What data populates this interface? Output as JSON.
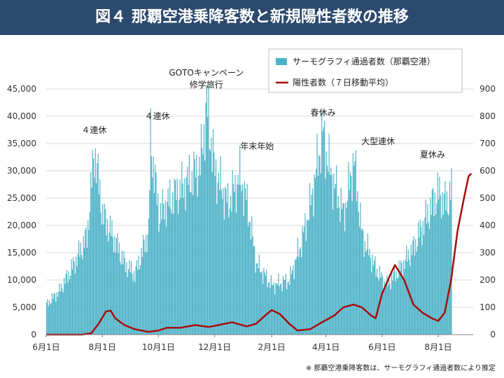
{
  "header": {
    "title": "図４ 那覇空港乗降客数と新規陽性者数の推移"
  },
  "footnote": "※ 那覇空港乗降客数は、サーモグラフィ通過者数により推定",
  "colors": {
    "title_bar": "#2c4a6e",
    "bars": "#4fb3c8",
    "line": "#a80d0d",
    "grid": "#d9d9d9"
  },
  "chart_data": {
    "type": "bar",
    "title": "",
    "xlabel": "",
    "ylabel_left": "",
    "ylabel_right": "",
    "grid": true,
    "legend_placement": "top-right",
    "left_axis": {
      "min": 0,
      "max": 45000,
      "ticks": [
        0,
        5000,
        10000,
        15000,
        20000,
        25000,
        30000,
        35000,
        40000,
        45000
      ],
      "tick_labels": [
        "0",
        "5,000",
        "10,000",
        "15,000",
        "20,000",
        "25,000",
        "30,000",
        "35,000",
        "40,000",
        "45,000"
      ]
    },
    "right_axis": {
      "min": 0,
      "max": 900,
      "ticks": [
        0,
        100,
        200,
        300,
        400,
        500,
        600,
        700,
        800,
        900
      ],
      "tick_labels": [
        "0",
        "100",
        "200",
        "300",
        "400",
        "500",
        "600",
        "700",
        "800",
        "900"
      ]
    },
    "x_axis": {
      "start": "2020-06-01",
      "end": "2021-08-15",
      "ticks": [
        "2020-06-01",
        "2020-08-01",
        "2020-10-01",
        "2020-12-01",
        "2021-02-01",
        "2021-04-01",
        "2021-06-01",
        "2021-08-01"
      ],
      "tick_labels": [
        "6月1日",
        "8月1日",
        "10月1日",
        "12月1日",
        "2月1日",
        "4月1日",
        "6月1日",
        "8月1日"
      ]
    },
    "series": [
      {
        "name": "サーモグラフィ通過者数（那覇空港）",
        "type": "bar",
        "axis": "left",
        "keypoints": [
          [
            "2020-06-01",
            5500
          ],
          [
            "2020-06-15",
            8000
          ],
          [
            "2020-07-01",
            13000
          ],
          [
            "2020-07-15",
            18000
          ],
          [
            "2020-07-23",
            34000
          ],
          [
            "2020-08-01",
            22000
          ],
          [
            "2020-08-15",
            17000
          ],
          [
            "2020-08-25",
            13000
          ],
          [
            "2020-09-05",
            11000
          ],
          [
            "2020-09-20",
            19000
          ],
          [
            "2020-09-22",
            36000
          ],
          [
            "2020-10-01",
            22000
          ],
          [
            "2020-10-15",
            25000
          ],
          [
            "2020-11-01",
            28000
          ],
          [
            "2020-11-15",
            31000
          ],
          [
            "2020-11-22",
            42000
          ],
          [
            "2020-12-01",
            30000
          ],
          [
            "2020-12-15",
            24000
          ],
          [
            "2020-12-28",
            29000
          ],
          [
            "2021-01-05",
            24000
          ],
          [
            "2021-01-15",
            13000
          ],
          [
            "2021-02-01",
            9000
          ],
          [
            "2021-02-20",
            10000
          ],
          [
            "2021-03-05",
            17000
          ],
          [
            "2021-03-15",
            24000
          ],
          [
            "2021-03-28",
            37000
          ],
          [
            "2021-04-05",
            30000
          ],
          [
            "2021-04-20",
            22000
          ],
          [
            "2021-05-01",
            32000
          ],
          [
            "2021-05-10",
            18000
          ],
          [
            "2021-05-25",
            12000
          ],
          [
            "2021-06-05",
            9000
          ],
          [
            "2021-06-20",
            12000
          ],
          [
            "2021-07-05",
            16000
          ],
          [
            "2021-07-20",
            22000
          ],
          [
            "2021-07-31",
            26000
          ],
          [
            "2021-08-10",
            24000
          ],
          [
            "2021-08-15",
            27000
          ]
        ]
      },
      {
        "name": "陽性者数（７日移動平均）",
        "type": "line",
        "axis": "right",
        "points": [
          [
            "2020-06-01",
            0
          ],
          [
            "2020-07-10",
            0
          ],
          [
            "2020-07-20",
            5
          ],
          [
            "2020-07-28",
            40
          ],
          [
            "2020-08-05",
            85
          ],
          [
            "2020-08-10",
            88
          ],
          [
            "2020-08-15",
            60
          ],
          [
            "2020-08-25",
            35
          ],
          [
            "2020-09-05",
            20
          ],
          [
            "2020-09-20",
            10
          ],
          [
            "2020-10-01",
            15
          ],
          [
            "2020-10-10",
            25
          ],
          [
            "2020-10-25",
            25
          ],
          [
            "2020-11-10",
            35
          ],
          [
            "2020-11-25",
            28
          ],
          [
            "2020-12-05",
            35
          ],
          [
            "2020-12-20",
            45
          ],
          [
            "2021-01-05",
            30
          ],
          [
            "2021-01-15",
            40
          ],
          [
            "2021-01-25",
            70
          ],
          [
            "2021-02-01",
            90
          ],
          [
            "2021-02-10",
            75
          ],
          [
            "2021-02-20",
            40
          ],
          [
            "2021-03-01",
            15
          ],
          [
            "2021-03-15",
            20
          ],
          [
            "2021-03-25",
            40
          ],
          [
            "2021-04-10",
            70
          ],
          [
            "2021-04-20",
            100
          ],
          [
            "2021-05-01",
            110
          ],
          [
            "2021-05-10",
            100
          ],
          [
            "2021-05-20",
            70
          ],
          [
            "2021-05-25",
            60
          ],
          [
            "2021-06-01",
            150
          ],
          [
            "2021-06-10",
            220
          ],
          [
            "2021-06-15",
            255
          ],
          [
            "2021-06-25",
            200
          ],
          [
            "2021-07-05",
            110
          ],
          [
            "2021-07-15",
            80
          ],
          [
            "2021-07-25",
            60
          ],
          [
            "2021-08-01",
            50
          ],
          [
            "2021-08-08",
            80
          ],
          [
            "2021-08-15",
            200
          ],
          [
            "2021-08-22",
            380
          ],
          [
            "2021-08-29",
            500
          ],
          [
            "2021-09-03",
            580
          ],
          [
            "2021-09-06",
            590
          ]
        ]
      }
    ],
    "annotations": [
      {
        "text": "４連休",
        "x": "2020-07-23"
      },
      {
        "text": "４連休",
        "x": "2020-09-22"
      },
      {
        "text": "GOTOキャンペーン",
        "x": "2020-11-22"
      },
      {
        "text": "修学旅行",
        "x": "2020-11-22"
      },
      {
        "text": "年末年始",
        "x": "2021-01-01"
      },
      {
        "text": "春休み",
        "x": "2021-03-25"
      },
      {
        "text": "大型連休",
        "x": "2021-05-01"
      },
      {
        "text": "夏休み",
        "x": "2021-08-10"
      }
    ]
  }
}
